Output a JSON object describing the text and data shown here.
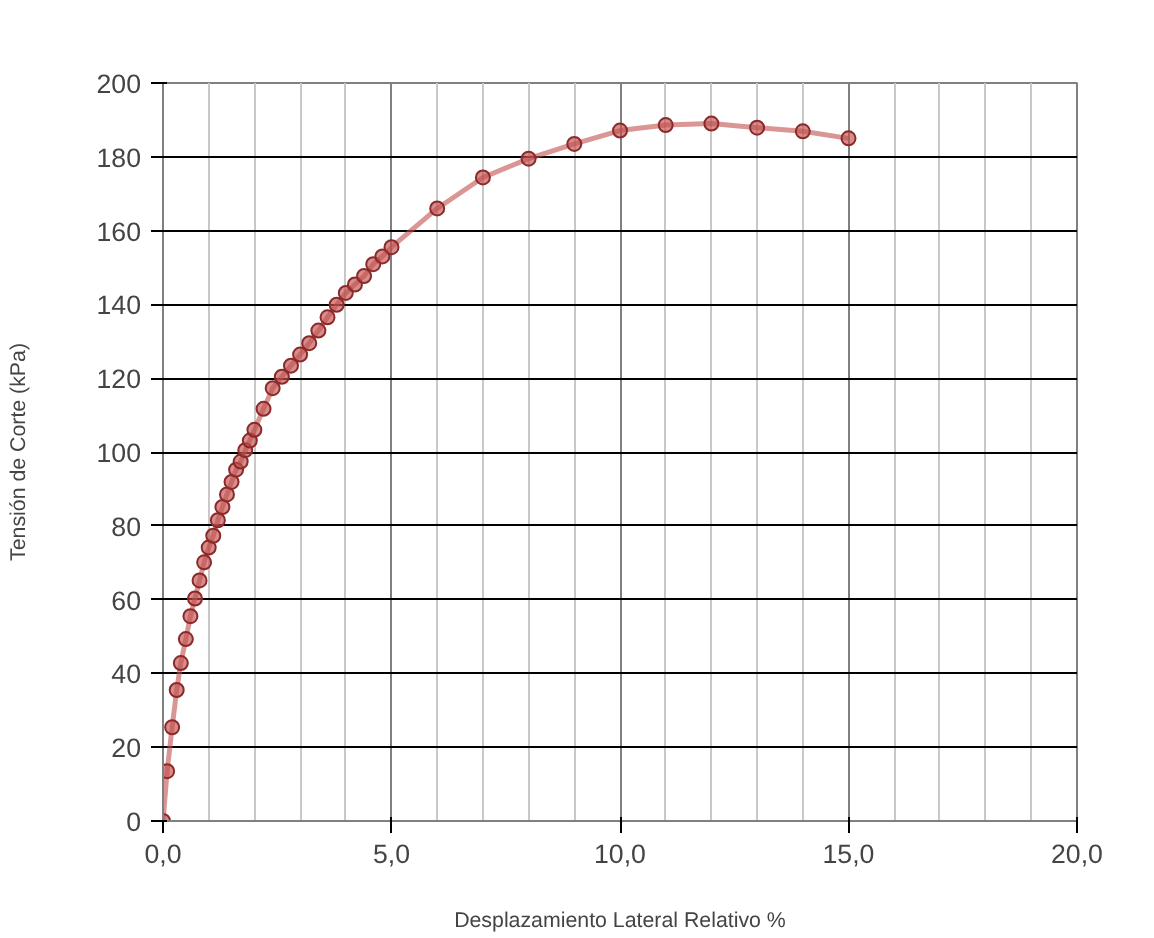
{
  "chart_data": {
    "type": "line",
    "xlabel": "Desplazamiento Lateral Relativo %",
    "ylabel": "Tensión de Corte (kPa)",
    "series": [
      {
        "color": "#c0504d",
        "x": [
          0,
          0.09,
          0.2,
          0.3,
          0.39,
          0.5,
          0.6,
          0.7,
          0.8,
          0.9,
          1.0,
          1.1,
          1.2,
          1.3,
          1.4,
          1.5,
          1.6,
          1.7,
          1.8,
          1.9,
          2.0,
          2.2,
          2.4,
          2.6,
          2.8,
          3.0,
          3.2,
          3.4,
          3.6,
          3.8,
          4.0,
          4.2,
          4.4,
          4.6,
          4.8,
          5.0,
          6.0,
          7.0,
          8.0,
          9.0,
          10.0,
          11.0,
          12.0,
          13.0,
          14.0,
          15.0
        ],
        "values": [
          0,
          13.5,
          25.4,
          35.5,
          42.8,
          49.3,
          55.5,
          60.3,
          65.2,
          70.1,
          74.1,
          77.3,
          81.5,
          85.1,
          88.5,
          91.9,
          95.2,
          97.4,
          100.5,
          103.1,
          106,
          111.7,
          117.3,
          120.4,
          123.4,
          126.4,
          129.5,
          132.9,
          136.5,
          139.9,
          143.1,
          145.4,
          147.7,
          150.9,
          153,
          155.5,
          166,
          174.4,
          179.5,
          183.5,
          187.1,
          188.6,
          189.0,
          187.9,
          186.9,
          185.0
        ]
      }
    ],
    "xlim": [
      0,
      20
    ],
    "xticks": [
      {
        "value": 0,
        "label": "0,0"
      },
      {
        "value": 5,
        "label": "5,0"
      },
      {
        "value": 10,
        "label": "10,0"
      },
      {
        "value": 15,
        "label": "15,0"
      },
      {
        "value": 20,
        "label": "20,0"
      }
    ],
    "ylim": [
      0,
      200
    ],
    "yticks": [
      0,
      20,
      40,
      60,
      80,
      100,
      120,
      140,
      160,
      180,
      200
    ],
    "grid": true,
    "marker": "circle",
    "line_style": "solid"
  }
}
